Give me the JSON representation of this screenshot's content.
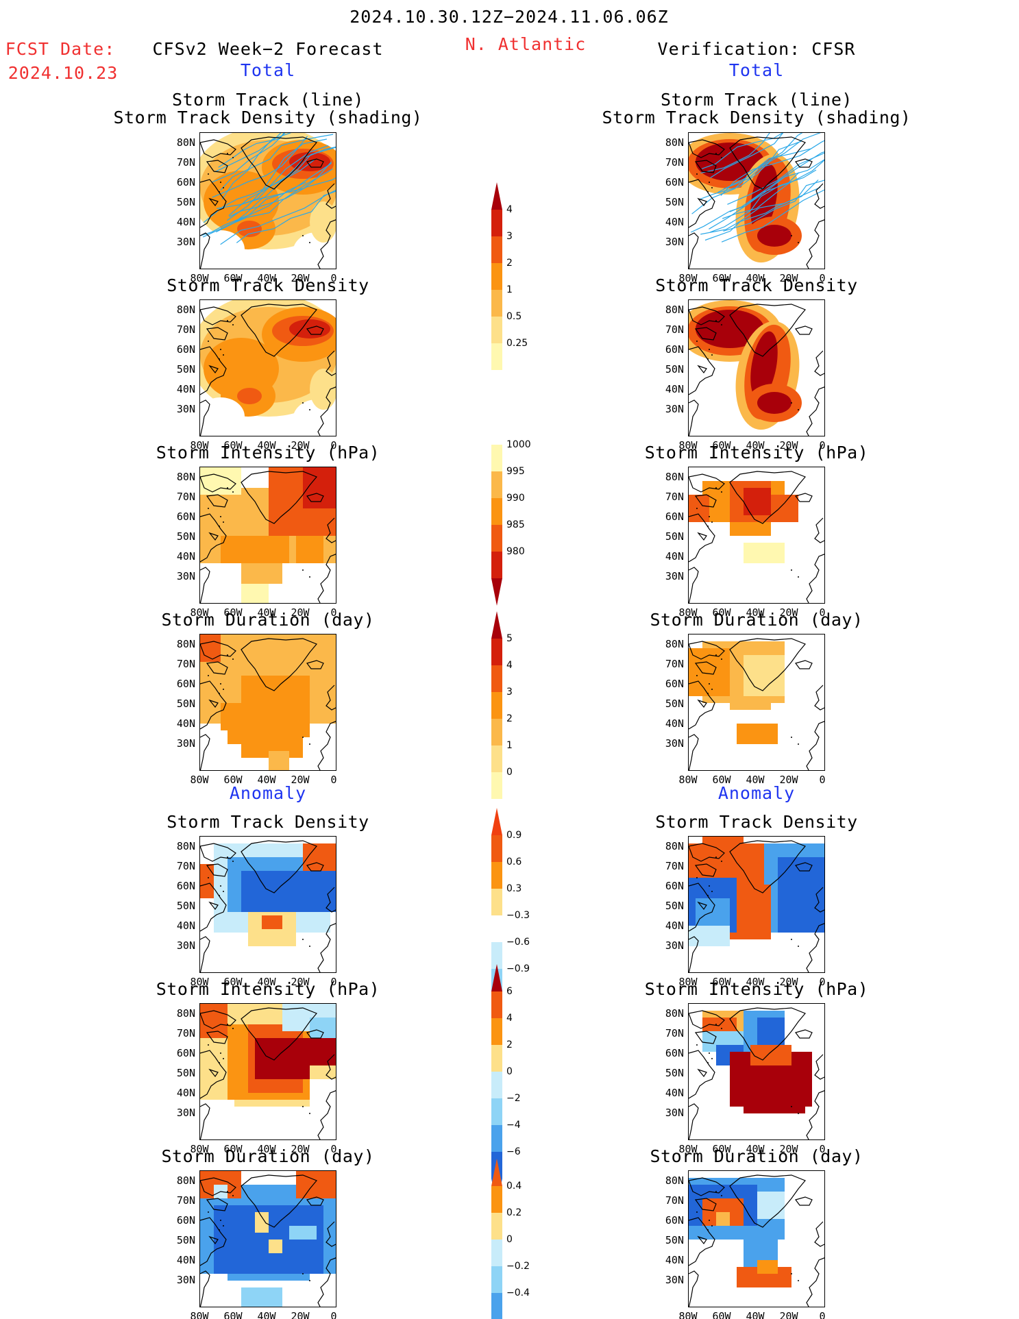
{
  "header": {
    "period": "2024.10.30.12Z−2024.11.06.06Z",
    "fcst_label": "FCST Date:",
    "fcst_date": "2024.10.23",
    "forecast_title": "CFSv2 Week−2 Forecast",
    "region": "N. Atlantic",
    "verification_title": "Verification: CFSR"
  },
  "sections": {
    "total": "Total",
    "anomaly": "Anomaly"
  },
  "panel_titles": {
    "track_line": "Storm Track (line)",
    "track_density_shading": "Storm Track Density (shading)",
    "track_density": "Storm Track Density",
    "intensity": "Storm Intensity (hPa)",
    "duration": "Storm Duration (day)"
  },
  "axes": {
    "lat_labels": [
      "80N",
      "70N",
      "60N",
      "50N",
      "40N",
      "30N"
    ],
    "lon_labels": [
      "80W",
      "60W",
      "40W",
      "20W",
      "0"
    ]
  },
  "colorbars": {
    "density_total": [
      "4",
      "3",
      "2",
      "1",
      "0.5",
      "0.25"
    ],
    "intensity_total": [
      "1000",
      "995",
      "990",
      "985",
      "980"
    ],
    "duration_total": [
      "5",
      "4",
      "3",
      "2",
      "1",
      "0"
    ],
    "density_anom": [
      "0.9",
      "0.6",
      "0.3",
      "−0.3",
      "−0.6",
      "−0.9"
    ],
    "intensity_anom": [
      "6",
      "4",
      "2",
      "0",
      "−2",
      "−4",
      "−6"
    ],
    "duration_anom": [
      "0.4",
      "0.2",
      "0",
      "−0.2",
      "−0.4"
    ]
  },
  "colors": {
    "header_red": "#f03030",
    "section_blue": "#1f35f0",
    "track_line": "#2aa8e8"
  }
}
